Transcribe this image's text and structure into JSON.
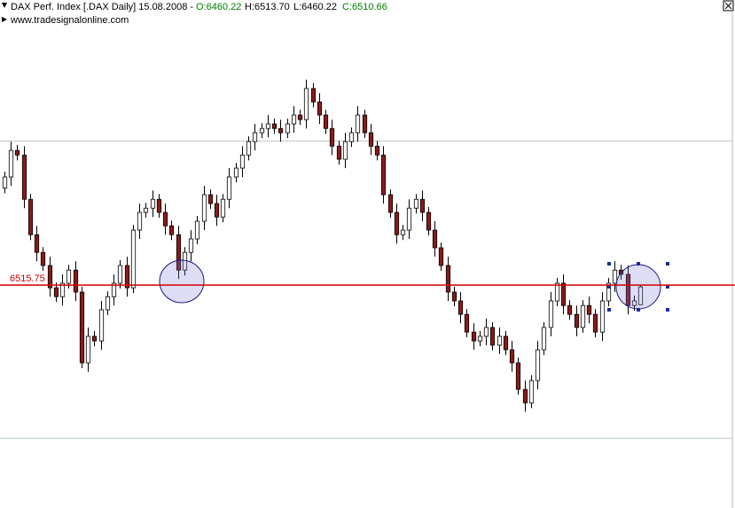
{
  "chart_data": {
    "type": "candlestick",
    "title": "DAX Perf. Index [.DAX  Daily] 15.08.2008 -",
    "ohlc_labels": [
      "O:6460.22",
      "H:6513.70",
      "L:6460.22",
      "C:6510.66"
    ],
    "subtitle": "www.tradesignalonline.com",
    "ylim": [
      5886,
      7321
    ],
    "guide_lines": [
      6923,
      6083
    ],
    "level_line": {
      "value": 6515.75,
      "label": "6515.75",
      "color": "#d00000"
    },
    "up_color": "#ffffff",
    "down_color": "#8b1a1a",
    "open": [
      6790,
      6821,
      6896,
      6883,
      6758,
      6658,
      6608,
      6571,
      6508,
      6483,
      6521,
      6558,
      6496,
      6296,
      6371,
      6358,
      6446,
      6483,
      6521,
      6571,
      6508,
      6671,
      6721,
      6733,
      6758,
      6721,
      6683,
      6658,
      6558,
      6608,
      6646,
      6696,
      6771,
      6746,
      6708,
      6758,
      6821,
      6846,
      6883,
      6921,
      6946,
      6958,
      6971,
      6958,
      6946,
      6971,
      6996,
      6983,
      7071,
      7033,
      6996,
      6958,
      6908,
      6871,
      6921,
      6946,
      6996,
      6946,
      6908,
      6883,
      6771,
      6721,
      6658,
      6671,
      6733,
      6758,
      6721,
      6671,
      6621,
      6571,
      6496,
      6471,
      6433,
      6383,
      6358,
      6371,
      6396,
      6346,
      6371,
      6333,
      6296,
      6221,
      6183,
      6246,
      6333,
      6396,
      6471,
      6521,
      6458,
      6433,
      6396,
      6458,
      6433,
      6383,
      6471,
      6521,
      6558,
      6546,
      6458,
      6460.22
    ],
    "high": [
      6836,
      6921,
      6911,
      6908,
      6773,
      6683,
      6623,
      6596,
      6523,
      6546,
      6573,
      6583,
      6511,
      6396,
      6386,
      6471,
      6498,
      6546,
      6586,
      6596,
      6686,
      6746,
      6748,
      6783,
      6773,
      6746,
      6698,
      6683,
      6623,
      6671,
      6711,
      6796,
      6786,
      6771,
      6773,
      6846,
      6861,
      6908,
      6936,
      6971,
      6973,
      6996,
      6986,
      6983,
      6986,
      7021,
      7011,
      7096,
      7086,
      7058,
      7011,
      6983,
      6923,
      6946,
      6961,
      7021,
      7011,
      6971,
      6923,
      6908,
      6786,
      6746,
      6686,
      6758,
      6773,
      6783,
      6736,
      6696,
      6636,
      6596,
      6511,
      6496,
      6448,
      6408,
      6386,
      6421,
      6411,
      6396,
      6386,
      6358,
      6311,
      6246,
      6261,
      6358,
      6411,
      6496,
      6536,
      6546,
      6473,
      6458,
      6473,
      6483,
      6448,
      6496,
      6536,
      6583,
      6573,
      6571,
      6486,
      6513.7
    ],
    "low": [
      6775,
      6796,
      6868,
      6733,
      6643,
      6583,
      6556,
      6483,
      6468,
      6458,
      6506,
      6471,
      6281,
      6271,
      6343,
      6333,
      6431,
      6458,
      6506,
      6483,
      6493,
      6646,
      6706,
      6708,
      6706,
      6658,
      6643,
      6533,
      6543,
      6583,
      6631,
      6671,
      6731,
      6683,
      6693,
      6733,
      6806,
      6821,
      6868,
      6896,
      6931,
      6933,
      6943,
      6921,
      6931,
      6946,
      6968,
      6958,
      7018,
      6971,
      6943,
      6883,
      6856,
      6846,
      6906,
      6921,
      6931,
      6883,
      6868,
      6746,
      6706,
      6633,
      6643,
      6646,
      6718,
      6696,
      6656,
      6596,
      6556,
      6471,
      6456,
      6408,
      6368,
      6333,
      6343,
      6346,
      6331,
      6321,
      6318,
      6271,
      6206,
      6158,
      6168,
      6221,
      6318,
      6371,
      6456,
      6433,
      6418,
      6371,
      6381,
      6408,
      6368,
      6358,
      6456,
      6496,
      6531,
      6433,
      6443,
      6460.22
    ],
    "close": [
      6821,
      6896,
      6883,
      6758,
      6658,
      6608,
      6571,
      6508,
      6483,
      6521,
      6558,
      6496,
      6296,
      6371,
      6358,
      6446,
      6483,
      6521,
      6571,
      6508,
      6671,
      6721,
      6733,
      6758,
      6721,
      6683,
      6658,
      6558,
      6608,
      6646,
      6696,
      6771,
      6746,
      6708,
      6758,
      6821,
      6846,
      6883,
      6921,
      6946,
      6958,
      6971,
      6958,
      6946,
      6971,
      6996,
      6983,
      7071,
      7033,
      6996,
      6958,
      6908,
      6871,
      6921,
      6946,
      6996,
      6946,
      6908,
      6883,
      6771,
      6721,
      6658,
      6671,
      6733,
      6758,
      6721,
      6671,
      6621,
      6571,
      6496,
      6471,
      6433,
      6383,
      6358,
      6371,
      6396,
      6346,
      6371,
      6333,
      6296,
      6221,
      6183,
      6246,
      6333,
      6396,
      6471,
      6521,
      6458,
      6433,
      6396,
      6458,
      6433,
      6383,
      6471,
      6521,
      6558,
      6546,
      6458,
      6471,
      6510.66
    ]
  }
}
